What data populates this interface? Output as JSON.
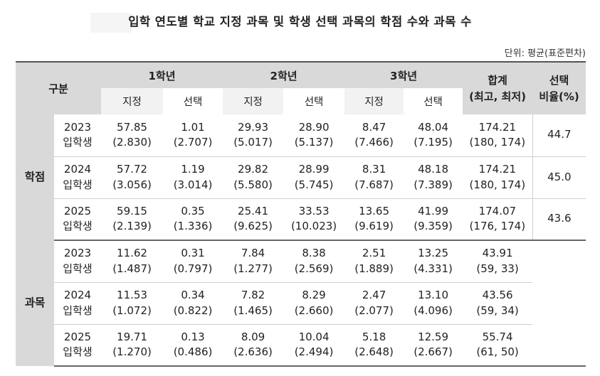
{
  "title": "입학 연도별 학교 지정 과목 및 학생 선택 과목의 학점 수와 과목 수",
  "unit": "단위: 평균(표준편차)",
  "header": {
    "category": "구분",
    "grade1": "1학년",
    "grade2": "2학년",
    "grade3": "3학년",
    "total_line1": "합계",
    "total_line2": "(최고, 최저)",
    "ratio_line1": "선택",
    "ratio_line2": "비율(%)",
    "designated": "지정",
    "elective": "선택"
  },
  "groups": {
    "credits": "학점",
    "courses": "과목"
  },
  "rows": [
    {
      "year": "2023",
      "label": "입학생",
      "g1d": "57.85",
      "g1d_sd": "(2.830)",
      "g1e": "1.01",
      "g1e_sd": "(2.707)",
      "g2d": "29.93",
      "g2d_sd": "(5.017)",
      "g2e": "28.90",
      "g2e_sd": "(5.137)",
      "g3d": "8.47",
      "g3d_sd": "(7.466)",
      "g3e": "48.04",
      "g3e_sd": "(7.195)",
      "total": "174.21",
      "range": "(180, 174)",
      "ratio": "44.7"
    },
    {
      "year": "2024",
      "label": "입학생",
      "g1d": "57.72",
      "g1d_sd": "(3.056)",
      "g1e": "1.19",
      "g1e_sd": "(3.014)",
      "g2d": "29.82",
      "g2d_sd": "(5.580)",
      "g2e": "28.99",
      "g2e_sd": "(5.745)",
      "g3d": "8.31",
      "g3d_sd": "(7.687)",
      "g3e": "48.18",
      "g3e_sd": "(7.389)",
      "total": "174.21",
      "range": "(180, 174)",
      "ratio": "45.0"
    },
    {
      "year": "2025",
      "label": "입학생",
      "g1d": "59.15",
      "g1d_sd": "(2.139)",
      "g1e": "0.35",
      "g1e_sd": "(1.336)",
      "g2d": "25.41",
      "g2d_sd": "(9.625)",
      "g2e": "33.53",
      "g2e_sd": "(10.023)",
      "g3d": "13.65",
      "g3d_sd": "(9.619)",
      "g3e": "41.99",
      "g3e_sd": "(9.359)",
      "total": "174.07",
      "range": "(176, 174)",
      "ratio": "43.6"
    },
    {
      "year": "2023",
      "label": "입학생",
      "g1d": "11.62",
      "g1d_sd": "(1.487)",
      "g1e": "0.31",
      "g1e_sd": "(0.797)",
      "g2d": "7.84",
      "g2d_sd": "(1.277)",
      "g2e": "8.38",
      "g2e_sd": "(2.569)",
      "g3d": "2.51",
      "g3d_sd": "(1.889)",
      "g3e": "13.25",
      "g3e_sd": "(4.331)",
      "total": "43.91",
      "range": "(59, 33)"
    },
    {
      "year": "2024",
      "label": "입학생",
      "g1d": "11.53",
      "g1d_sd": "(1.072)",
      "g1e": "0.34",
      "g1e_sd": "(0.822)",
      "g2d": "7.82",
      "g2d_sd": "(1.465)",
      "g2e": "8.29",
      "g2e_sd": "(2.660)",
      "g3d": "2.47",
      "g3d_sd": "(2.077)",
      "g3e": "13.10",
      "g3e_sd": "(4.096)",
      "total": "43.56",
      "range": "(59, 34)"
    },
    {
      "year": "2025",
      "label": "입학생",
      "g1d": "19.71",
      "g1d_sd": "(1.270)",
      "g1e": "0.13",
      "g1e_sd": "(0.486)",
      "g2d": "8.09",
      "g2d_sd": "(2.636)",
      "g2e": "10.04",
      "g2e_sd": "(2.494)",
      "g3d": "5.18",
      "g3d_sd": "(2.648)",
      "g3e": "12.59",
      "g3e_sd": "(2.667)",
      "total": "55.74",
      "range": "(61, 50)"
    }
  ]
}
